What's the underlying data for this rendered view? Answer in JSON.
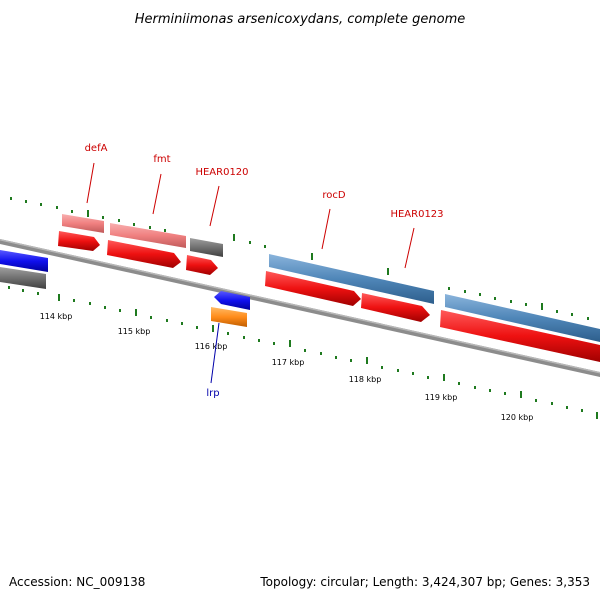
{
  "title": "Herminiimonas arsenicoxydans, complete genome",
  "footer": {
    "accession": "Accession: NC_009138",
    "summary": "Topology: circular; Length: 3,424,307 bp; Genes: 3,353"
  },
  "colors": {
    "backbone": "#8c8c8c",
    "tick": "#1f7a1f",
    "label_red": "#cc0000",
    "label_blue": "#0000aa",
    "cds_red": "#ee1111",
    "gene_pink": "#f08080",
    "gene_gray": "#707070",
    "gene_steelblue": "#4f86b8",
    "cds_blue": "#1010ee",
    "gene_orange": "#ff8c1a"
  },
  "kbp_labels": [
    "114 kbp",
    "115 kbp",
    "116 kbp",
    "117 kbp",
    "118 kbp",
    "119 kbp",
    "120 kbp"
  ],
  "gene_labels": [
    {
      "name": "defA",
      "color": "label_red"
    },
    {
      "name": "fmt",
      "color": "label_red"
    },
    {
      "name": "HEAR0120",
      "color": "label_red"
    },
    {
      "name": "rocD",
      "color": "label_red"
    },
    {
      "name": "HEAR0123",
      "color": "label_red"
    },
    {
      "name": "lrp",
      "color": "label_blue"
    }
  ]
}
